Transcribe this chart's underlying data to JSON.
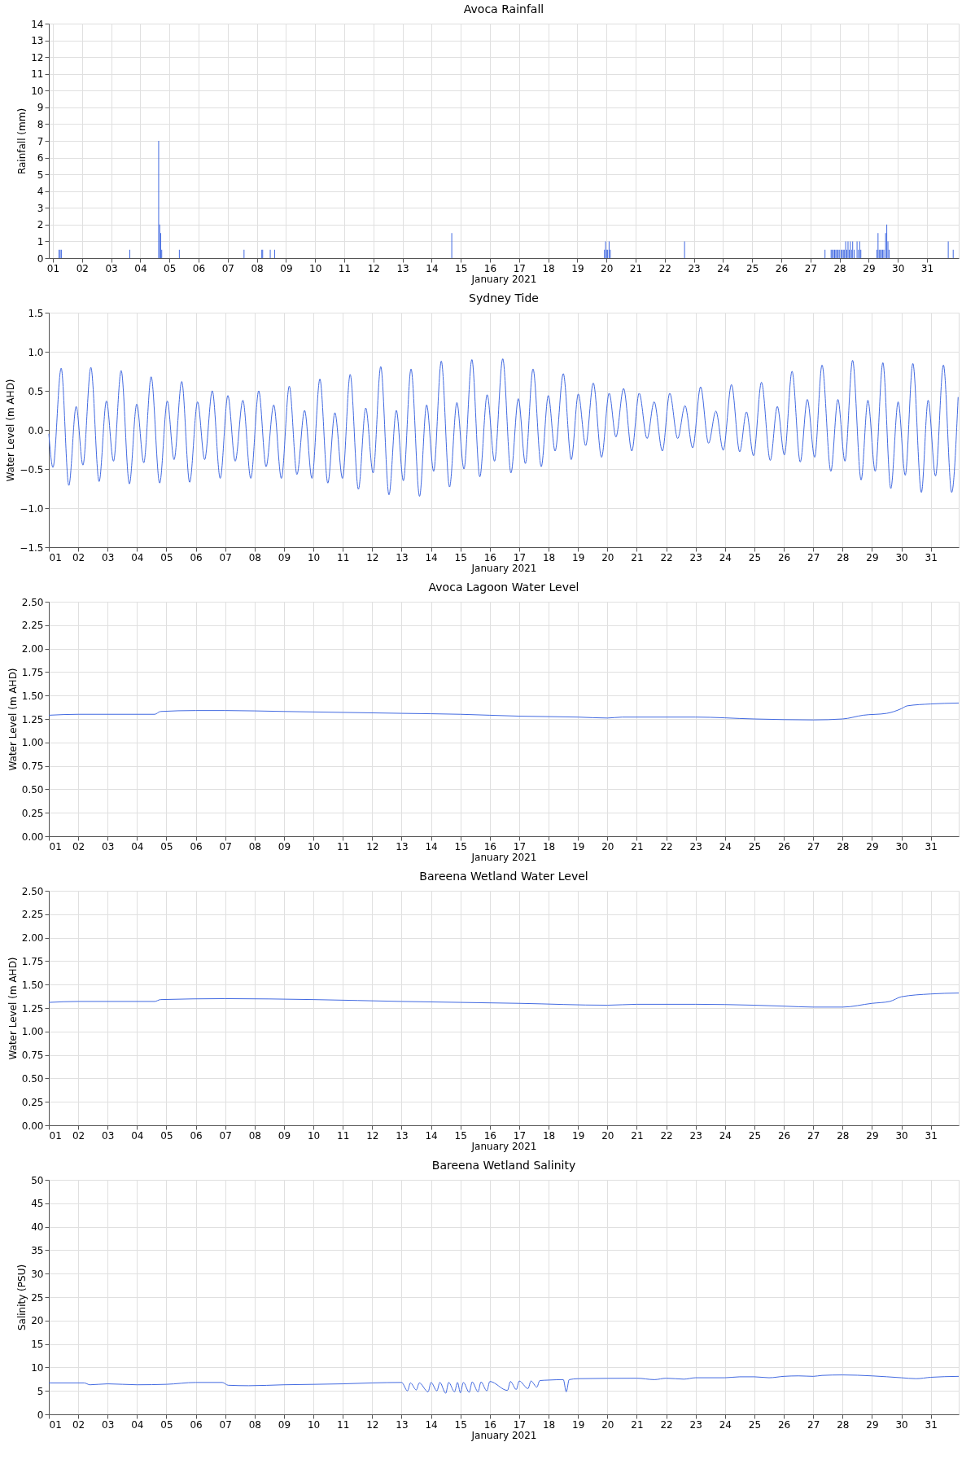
{
  "chart_data": [
    {
      "type": "bar",
      "title": "Avoca Rainfall",
      "xlabel": "January 2021",
      "ylabel": "Rainfall (mm)",
      "color": "#4169e1",
      "grid": true,
      "x": [
        1.21,
        1.25,
        1.29,
        3.64,
        4.63,
        4.665,
        4.7,
        4.735,
        5.34,
        7.56,
        8.17,
        8.2,
        8.46,
        8.61,
        14.69,
        19.93,
        19.97,
        20.0,
        20.04,
        20.09,
        20.13,
        22.68,
        27.5,
        27.71,
        27.75,
        27.79,
        27.83,
        27.87,
        27.91,
        27.95,
        27.99,
        28.05,
        28.09,
        28.13,
        28.17,
        28.21,
        28.25,
        28.29,
        28.33,
        28.37,
        28.41,
        28.45,
        28.5,
        28.6,
        28.65,
        28.69,
        28.73,
        29.28,
        29.32,
        29.36,
        29.4,
        29.44,
        29.48,
        29.52,
        29.58,
        29.62,
        29.66,
        29.7,
        31.73,
        31.9
      ],
      "values": [
        0.5,
        0.5,
        0.5,
        0.5,
        7,
        2,
        1.5,
        0.5,
        0.5,
        0.5,
        0.5,
        0.5,
        0.5,
        0.5,
        1.5,
        0.5,
        1,
        0.5,
        0.5,
        1,
        0.5,
        1,
        0.5,
        0.5,
        0.5,
        0.5,
        0.5,
        0.5,
        0.5,
        0.5,
        0.5,
        0.5,
        0.5,
        0.5,
        0.5,
        1,
        0.5,
        1,
        0.5,
        1,
        0.5,
        1,
        0.5,
        1,
        0.5,
        1,
        0.5,
        0.5,
        1.5,
        0.5,
        0.5,
        0.5,
        0.5,
        0.5,
        1.5,
        2,
        1,
        0.5,
        1,
        0.5
      ],
      "xlim": [
        1,
        31.95
      ],
      "xticks": [
        {
          "value": 1,
          "label": "01"
        },
        {
          "value": 2,
          "label": "02"
        },
        {
          "value": 3,
          "label": "03"
        },
        {
          "value": 4,
          "label": "04"
        },
        {
          "value": 5,
          "label": "05"
        },
        {
          "value": 6,
          "label": "06"
        },
        {
          "value": 7,
          "label": "07"
        },
        {
          "value": 8,
          "label": "08"
        },
        {
          "value": 9,
          "label": "09"
        },
        10,
        11,
        12,
        13,
        14,
        15,
        16,
        17,
        18,
        19,
        20,
        21,
        22,
        23,
        24,
        25,
        26,
        27,
        28,
        29,
        30,
        31
      ],
      "ylim": [
        0,
        14
      ],
      "yticks": [
        0,
        1,
        2,
        3,
        4,
        5,
        6,
        7,
        8,
        9,
        10,
        11,
        12,
        13,
        14
      ]
    },
    {
      "type": "line",
      "title": "Sydney Tide",
      "xlabel": "January 2021",
      "ylabel": "Water Level (m AHD)",
      "color": "#4169e1",
      "grid": true,
      "x": [
        1.0,
        1.14,
        1.42,
        1.68,
        1.93,
        2.16,
        2.43,
        2.71,
        2.96,
        3.2,
        3.46,
        3.74,
        3.99,
        4.23,
        4.48,
        4.77,
        5.03,
        5.26,
        5.52,
        5.79,
        6.06,
        6.3,
        6.56,
        6.83,
        7.09,
        7.34,
        7.6,
        7.87,
        8.14,
        8.39,
        8.65,
        8.91,
        9.18,
        9.44,
        9.7,
        9.95,
        10.22,
        10.49,
        10.73,
        10.99,
        11.25,
        11.53,
        11.78,
        12.03,
        12.29,
        12.57,
        12.82,
        13.06,
        13.32,
        13.61,
        13.85,
        14.09,
        14.35,
        14.63,
        14.88,
        15.12,
        15.39,
        15.66,
        15.91,
        16.16,
        16.44,
        16.72,
        16.97,
        17.21,
        17.47,
        17.75,
        17.99,
        18.22,
        18.5,
        18.77,
        19.01,
        19.26,
        19.52,
        19.8,
        20.06,
        20.29,
        20.55,
        20.83,
        21.08,
        21.35,
        21.59,
        21.87,
        22.12,
        22.39,
        22.64,
        22.9,
        23.17,
        23.44,
        23.69,
        23.94,
        24.22,
        24.5,
        24.73,
        24.97,
        25.24,
        25.54,
        25.78,
        26.02,
        26.28,
        26.56,
        26.8,
        27.05,
        27.3,
        27.6,
        27.84,
        28.08,
        28.34,
        28.63,
        28.86,
        29.11,
        29.37,
        29.64,
        29.89,
        30.13,
        30.39,
        30.68,
        30.91,
        31.16,
        31.43,
        31.71,
        31.93
      ],
      "values": [
        -0.05,
        -0.48,
        0.79,
        -0.71,
        0.3,
        -0.45,
        0.8,
        -0.66,
        0.37,
        -0.4,
        0.76,
        -0.69,
        0.33,
        -0.42,
        0.68,
        -0.68,
        0.37,
        -0.38,
        0.62,
        -0.67,
        0.36,
        -0.38,
        0.5,
        -0.62,
        0.44,
        -0.4,
        0.38,
        -0.62,
        0.5,
        -0.47,
        0.32,
        -0.62,
        0.56,
        -0.57,
        0.25,
        -0.62,
        0.65,
        -0.68,
        0.22,
        -0.62,
        0.71,
        -0.76,
        0.28,
        -0.55,
        0.81,
        -0.83,
        0.25,
        -0.65,
        0.78,
        -0.85,
        0.32,
        -0.53,
        0.88,
        -0.73,
        0.35,
        -0.5,
        0.9,
        -0.6,
        0.45,
        -0.4,
        0.91,
        -0.55,
        0.4,
        -0.43,
        0.78,
        -0.47,
        0.44,
        -0.27,
        0.72,
        -0.38,
        0.46,
        -0.2,
        0.6,
        -0.35,
        0.47,
        -0.09,
        0.53,
        -0.27,
        0.47,
        -0.11,
        0.36,
        -0.27,
        0.47,
        -0.11,
        0.31,
        -0.23,
        0.55,
        -0.17,
        0.24,
        -0.26,
        0.58,
        -0.28,
        0.23,
        -0.33,
        0.61,
        -0.39,
        0.3,
        -0.32,
        0.75,
        -0.41,
        0.39,
        -0.35,
        0.83,
        -0.53,
        0.39,
        -0.4,
        0.89,
        -0.64,
        0.38,
        -0.53,
        0.86,
        -0.75,
        0.36,
        -0.58,
        0.85,
        -0.8,
        0.38,
        -0.59,
        0.83,
        -0.8,
        0.42
      ],
      "xlim": [
        1,
        31.95
      ],
      "xticks": [
        {
          "value": 1,
          "label": "01"
        },
        {
          "value": 2,
          "label": "02"
        },
        {
          "value": 3,
          "label": "03"
        },
        {
          "value": 4,
          "label": "04"
        },
        {
          "value": 5,
          "label": "05"
        },
        {
          "value": 6,
          "label": "06"
        },
        {
          "value": 7,
          "label": "07"
        },
        {
          "value": 8,
          "label": "08"
        },
        {
          "value": 9,
          "label": "09"
        },
        10,
        11,
        12,
        13,
        14,
        15,
        16,
        17,
        18,
        19,
        20,
        21,
        22,
        23,
        24,
        25,
        26,
        27,
        28,
        29,
        30,
        31
      ],
      "ylim": [
        -1.5,
        1.5
      ],
      "yticks": [
        {
          "value": -1.5,
          "label": "−1.5"
        },
        {
          "value": -1,
          "label": "−1.0"
        },
        {
          "value": -0.5,
          "label": "−0.5"
        },
        {
          "value": 0,
          "label": "0.0"
        },
        0.5,
        {
          "value": 1,
          "label": "1.0"
        },
        1.5
      ]
    },
    {
      "type": "line",
      "title": "Avoca Lagoon Water Level",
      "xlabel": "January 2021",
      "ylabel": "Water Level (m AHD)",
      "color": "#4169e1",
      "grid": true,
      "x": [
        1,
        2,
        4.6,
        4.8,
        6,
        7,
        9,
        11,
        13,
        15,
        17,
        19,
        20,
        20.5,
        23,
        25,
        27,
        28,
        28.7,
        29.5,
        30,
        30.2,
        31,
        31.95
      ],
      "values": [
        1.29,
        1.3,
        1.3,
        1.33,
        1.34,
        1.34,
        1.33,
        1.32,
        1.31,
        1.3,
        1.28,
        1.27,
        1.26,
        1.27,
        1.27,
        1.25,
        1.24,
        1.25,
        1.29,
        1.31,
        1.36,
        1.39,
        1.41,
        1.42
      ],
      "xlim": [
        1,
        31.95
      ],
      "xticks": [
        {
          "value": 1,
          "label": "01"
        },
        {
          "value": 2,
          "label": "02"
        },
        {
          "value": 3,
          "label": "03"
        },
        {
          "value": 4,
          "label": "04"
        },
        {
          "value": 5,
          "label": "05"
        },
        {
          "value": 6,
          "label": "06"
        },
        {
          "value": 7,
          "label": "07"
        },
        {
          "value": 8,
          "label": "08"
        },
        {
          "value": 9,
          "label": "09"
        },
        10,
        11,
        12,
        13,
        14,
        15,
        16,
        17,
        18,
        19,
        20,
        21,
        22,
        23,
        24,
        25,
        26,
        27,
        28,
        29,
        30,
        31
      ],
      "ylim": [
        0,
        2.5
      ],
      "yticks": [
        {
          "value": 0,
          "label": "0.00"
        },
        0.25,
        {
          "value": 0.5,
          "label": "0.50"
        },
        0.75,
        {
          "value": 1,
          "label": "1.00"
        },
        1.25,
        {
          "value": 1.5,
          "label": "1.50"
        },
        1.75,
        {
          "value": 2,
          "label": "2.00"
        },
        2.25,
        {
          "value": 2.5,
          "label": "2.50"
        }
      ]
    },
    {
      "type": "line",
      "title": "Bareena Wetland Water Level",
      "xlabel": "January 2021",
      "ylabel": "Water Level (m AHD)",
      "color": "#4169e1",
      "grid": true,
      "x": [
        1,
        2,
        4.6,
        4.8,
        7,
        10,
        13,
        17,
        20,
        21,
        23,
        25,
        26,
        27,
        28,
        29,
        29.6,
        30,
        31,
        31.95
      ],
      "values": [
        1.31,
        1.32,
        1.32,
        1.34,
        1.35,
        1.34,
        1.32,
        1.3,
        1.28,
        1.29,
        1.29,
        1.28,
        1.27,
        1.26,
        1.26,
        1.3,
        1.32,
        1.37,
        1.4,
        1.41
      ],
      "xlim": [
        1,
        31.95
      ],
      "xticks": [
        {
          "value": 1,
          "label": "01"
        },
        {
          "value": 2,
          "label": "02"
        },
        {
          "value": 3,
          "label": "03"
        },
        {
          "value": 4,
          "label": "04"
        },
        {
          "value": 5,
          "label": "05"
        },
        {
          "value": 6,
          "label": "06"
        },
        {
          "value": 7,
          "label": "07"
        },
        {
          "value": 8,
          "label": "08"
        },
        {
          "value": 9,
          "label": "09"
        },
        10,
        11,
        12,
        13,
        14,
        15,
        16,
        17,
        18,
        19,
        20,
        21,
        22,
        23,
        24,
        25,
        26,
        27,
        28,
        29,
        30,
        31
      ],
      "ylim": [
        0,
        2.5
      ],
      "yticks": [
        {
          "value": 0,
          "label": "0.00"
        },
        0.25,
        {
          "value": 0.5,
          "label": "0.50"
        },
        0.75,
        {
          "value": 1,
          "label": "1.00"
        },
        1.25,
        {
          "value": 1.5,
          "label": "1.50"
        },
        1.75,
        {
          "value": 2,
          "label": "2.00"
        },
        2.25,
        {
          "value": 2.5,
          "label": "2.50"
        }
      ]
    },
    {
      "type": "line",
      "title": "Bareena Wetland Salinity",
      "xlabel": "January 2021",
      "ylabel": "Salinity (PSU)",
      "color": "#4169e1",
      "grid": true,
      "x": [
        1,
        2.2,
        2.4,
        3,
        4,
        5,
        6,
        6.9,
        7.1,
        7.8,
        9,
        11,
        12,
        13,
        13.2,
        13.3,
        13.5,
        13.6,
        13.9,
        14.0,
        14.2,
        14.3,
        14.5,
        14.6,
        14.8,
        14.9,
        15.0,
        15.1,
        15.3,
        15.4,
        15.6,
        15.7,
        15.9,
        16.0,
        16.6,
        16.7,
        16.9,
        17.0,
        17.3,
        17.4,
        17.6,
        17.7,
        18.0,
        18.5,
        18.6,
        18.7,
        19,
        21,
        21.6,
        22,
        22.6,
        23,
        24,
        24.5,
        25,
        25.5,
        26,
        26.5,
        27,
        27.3,
        28,
        29,
        30,
        30.5,
        31,
        31.95
      ],
      "values": [
        6.7,
        6.7,
        6.3,
        6.5,
        6.3,
        6.4,
        6.8,
        6.8,
        6.2,
        6.1,
        6.3,
        6.5,
        6.7,
        6.8,
        5.0,
        6.7,
        5.2,
        6.7,
        4.8,
        6.8,
        5.0,
        6.8,
        4.5,
        6.8,
        4.8,
        6.8,
        4.6,
        6.8,
        4.7,
        6.9,
        4.8,
        6.9,
        5.0,
        7.0,
        5.1,
        7.0,
        5.3,
        7.1,
        5.5,
        7.1,
        5.8,
        7.2,
        7.3,
        7.4,
        4.8,
        7.4,
        7.6,
        7.7,
        7.4,
        7.7,
        7.5,
        7.8,
        7.8,
        8.0,
        8.0,
        7.8,
        8.1,
        8.2,
        8.1,
        8.3,
        8.4,
        8.2,
        7.8,
        7.6,
        7.9,
        8.1
      ],
      "xlim": [
        1,
        31.95
      ],
      "xticks": [
        {
          "value": 1,
          "label": "01"
        },
        {
          "value": 2,
          "label": "02"
        },
        {
          "value": 3,
          "label": "03"
        },
        {
          "value": 4,
          "label": "04"
        },
        {
          "value": 5,
          "label": "05"
        },
        {
          "value": 6,
          "label": "06"
        },
        {
          "value": 7,
          "label": "07"
        },
        {
          "value": 8,
          "label": "08"
        },
        {
          "value": 9,
          "label": "09"
        },
        10,
        11,
        12,
        13,
        14,
        15,
        16,
        17,
        18,
        19,
        20,
        21,
        22,
        23,
        24,
        25,
        26,
        27,
        28,
        29,
        30,
        31
      ],
      "ylim": [
        0,
        50
      ],
      "yticks": [
        0,
        5,
        10,
        15,
        20,
        25,
        30,
        35,
        40,
        45,
        50
      ]
    }
  ]
}
